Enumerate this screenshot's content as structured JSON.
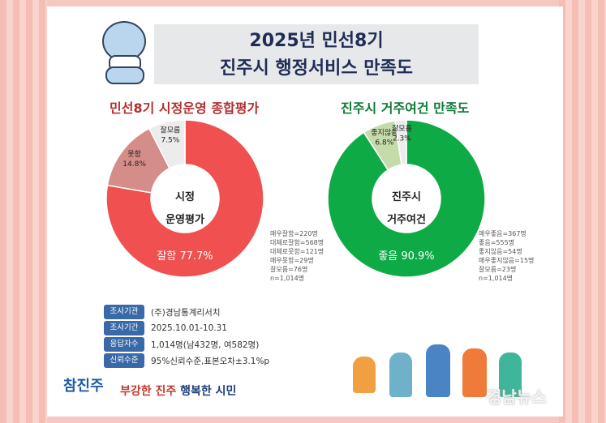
{
  "title": {
    "line1": "2025년 민선8기",
    "line2": "진주시 행정서비스 만족도"
  },
  "left": {
    "title": "민선8기 시정운영 종합평가",
    "center1": "시정",
    "center2": "운영평가",
    "slices": [
      {
        "label": "잘함",
        "value": 77.7,
        "text": "잘함 77.7%",
        "color": "#f05050"
      },
      {
        "label": "못함",
        "value": 14.8,
        "text": "14.8%",
        "color": "#d48d88"
      },
      {
        "label": "잘모름",
        "value": 7.5,
        "text": "7.5%",
        "color": "#ececec"
      }
    ],
    "legend": [
      "매우잘함=220명",
      "대체로잘함=568명",
      "대체로못함=121명",
      "매우못함=29명",
      "잘모름=76명",
      "n=1,014명"
    ]
  },
  "right": {
    "title": "진주시 거주여건 만족도",
    "center1": "진주시",
    "center2": "거주여건",
    "slices": [
      {
        "label": "좋음",
        "value": 90.9,
        "text": "좋음 90.9%",
        "color": "#0eaa45"
      },
      {
        "label": "좋지않음",
        "value": 6.8,
        "text": "6.8%",
        "color": "#c5dcaa"
      },
      {
        "label": "잘모름",
        "value": 2.3,
        "text": "2.3%",
        "color": "#ececec"
      }
    ],
    "legend": [
      "매우좋음=367명",
      "좋음=555명",
      "좋지않음=54명",
      "매우좋지않음=15명",
      "잘모름=23명",
      "n=1,014명"
    ]
  },
  "info": [
    {
      "label": "조사기관",
      "value": "(주)경남통계리서치"
    },
    {
      "label": "조사기간",
      "value": "2025.10.01-10.31"
    },
    {
      "label": "응답자수",
      "value": "1,014명(남432명, 여582명)"
    },
    {
      "label": "신뢰수준",
      "value": "95%신뢰수준,표본오차±3.1%p"
    }
  ],
  "slogan": {
    "a": "부강한 진주",
    "b": "행복한 시민"
  },
  "logo": "참진주",
  "watermark": "경남뉴스"
}
